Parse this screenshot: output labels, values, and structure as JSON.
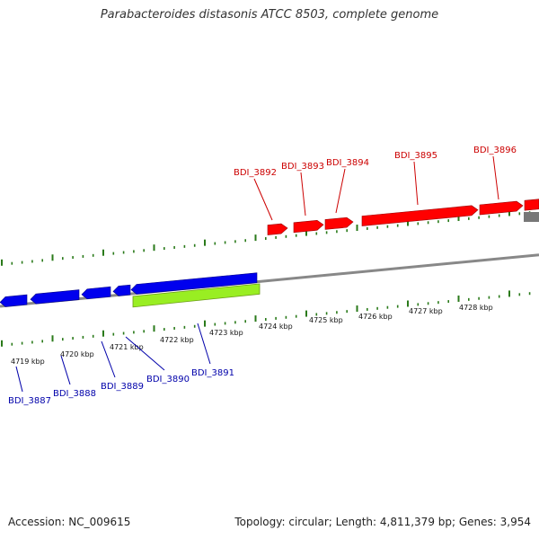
{
  "title": "Parabacteroides distasonis ATCC 8503, complete genome",
  "footer": {
    "accession": "Accession: NC_009615",
    "summary": "Topology: circular; Length: 4,811,379 bp; Genes: 3,954"
  },
  "colors": {
    "forward_gene": "#ff0000",
    "reverse_gene": "#0000ee",
    "highlight_gene": "#99ee22",
    "forward_label": "#cc0000",
    "reverse_label": "#0000aa",
    "backbone": "#888888",
    "tick": "#2a7a1a",
    "other_feature": "#777777"
  },
  "ticks": {
    "labels": [
      "4719 kbp",
      "4720 kbp",
      "4721 kbp",
      "4722 kbp",
      "4723 kbp",
      "4724 kbp",
      "4725 kbp",
      "4726 kbp",
      "4727 kbp",
      "4728 kbp"
    ]
  },
  "forward_genes": [
    {
      "label": "BDI_3892"
    },
    {
      "label": "BDI_3893"
    },
    {
      "label": "BDI_3894"
    },
    {
      "label": "BDI_3895"
    },
    {
      "label": "BDI_3896"
    }
  ],
  "reverse_genes": [
    {
      "label": "BDI_3887"
    },
    {
      "label": "BDI_3888"
    },
    {
      "label": "BDI_3889"
    },
    {
      "label": "BDI_3890"
    },
    {
      "label": "BDI_3891"
    }
  ]
}
